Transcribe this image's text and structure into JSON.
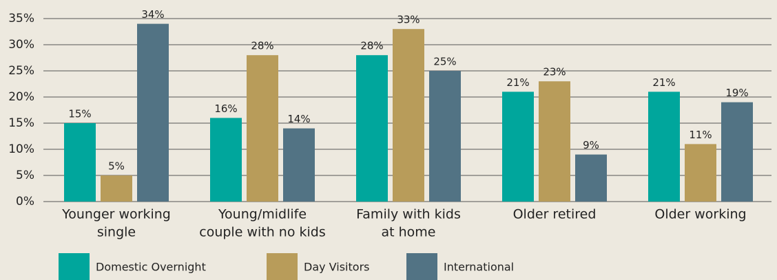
{
  "chart_data": {
    "type": "bar",
    "categories": [
      [
        "Younger working",
        "single"
      ],
      [
        "Young/midlife",
        "couple with no kids"
      ],
      [
        "Family with kids",
        "at home"
      ],
      [
        "Older retired"
      ],
      [
        "Older working"
      ]
    ],
    "series": [
      {
        "name": "Domestic Overnight",
        "color": "#00a69c",
        "values": [
          15,
          16,
          28,
          21,
          21
        ],
        "value_labels": [
          "15%",
          "16%",
          "28%",
          "21%",
          "21%"
        ]
      },
      {
        "name": "Day Visitors",
        "color": "#b89c5a",
        "values": [
          5,
          28,
          33,
          23,
          11
        ],
        "value_labels": [
          "5%",
          "28%",
          "33%",
          "23%",
          "11%"
        ]
      },
      {
        "name": "International",
        "color": "#527384",
        "values": [
          34,
          14,
          25,
          9,
          19
        ],
        "value_labels": [
          "34%",
          "14%",
          "25%",
          "9%",
          "19%"
        ]
      }
    ],
    "ylim": [
      0,
      35
    ],
    "yticks": [
      {
        "value": 0,
        "label": "0%"
      },
      {
        "value": 5,
        "label": "5%"
      },
      {
        "value": 10,
        "label": "10%"
      },
      {
        "value": 15,
        "label": "15%"
      },
      {
        "value": 20,
        "label": "20%"
      },
      {
        "value": 25,
        "label": "25%"
      },
      {
        "value": 30,
        "label": "30%"
      },
      {
        "value": 35,
        "label": "35%"
      }
    ],
    "grid": true,
    "legend": "bottom"
  }
}
